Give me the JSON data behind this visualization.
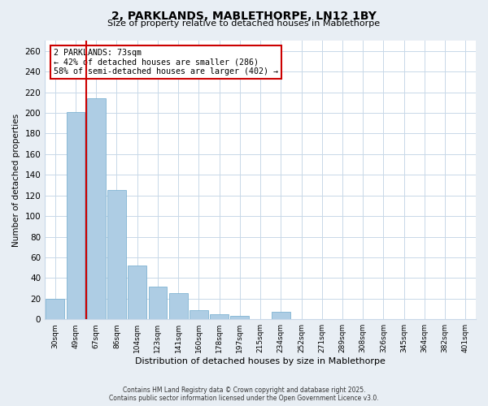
{
  "title_line1": "2, PARKLANDS, MABLETHORPE, LN12 1BY",
  "title_line2": "Size of property relative to detached houses in Mablethorpe",
  "xlabel": "Distribution of detached houses by size in Mablethorpe",
  "ylabel": "Number of detached properties",
  "bin_labels": [
    "30sqm",
    "49sqm",
    "67sqm",
    "86sqm",
    "104sqm",
    "123sqm",
    "141sqm",
    "160sqm",
    "178sqm",
    "197sqm",
    "215sqm",
    "234sqm",
    "252sqm",
    "271sqm",
    "289sqm",
    "308sqm",
    "326sqm",
    "345sqm",
    "364sqm",
    "382sqm",
    "401sqm"
  ],
  "bar_values": [
    20,
    201,
    214,
    125,
    52,
    32,
    25,
    9,
    5,
    3,
    0,
    7,
    0,
    0,
    0,
    0,
    0,
    0,
    0,
    0,
    0
  ],
  "bar_color": "#aecde4",
  "bar_edge_color": "#7fb3d3",
  "ylim": [
    0,
    270
  ],
  "yticks": [
    0,
    20,
    40,
    60,
    80,
    100,
    120,
    140,
    160,
    180,
    200,
    220,
    240,
    260
  ],
  "vline_color": "#cc0000",
  "annotation_title": "2 PARKLANDS: 73sqm",
  "annotation_line2": "← 42% of detached houses are smaller (286)",
  "annotation_line3": "58% of semi-detached houses are larger (402) →",
  "annotation_box_edge": "#cc0000",
  "footnote1": "Contains HM Land Registry data © Crown copyright and database right 2025.",
  "footnote2": "Contains public sector information licensed under the Open Government Licence v3.0.",
  "bg_color": "#e8eef4",
  "plot_bg_color": "#ffffff",
  "grid_color": "#c8d8e8"
}
